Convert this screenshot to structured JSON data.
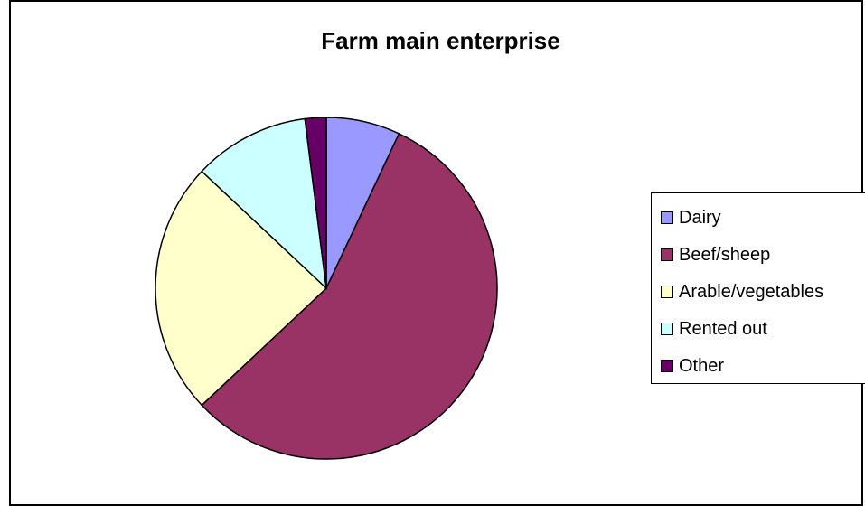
{
  "chart_data": {
    "type": "pie",
    "title": "Farm main enterprise",
    "categories": [
      "Dairy",
      "Beef/sheep",
      "Arable/vegetables",
      "Rented out",
      "Other"
    ],
    "values": [
      7,
      56,
      24,
      11,
      2
    ],
    "unit": "%",
    "colors": [
      "#9999FF",
      "#993366",
      "#FFFFCC",
      "#CCFFFF",
      "#660066"
    ],
    "start_angle_deg": 0,
    "direction": "clockwise",
    "legend_position": "right"
  }
}
